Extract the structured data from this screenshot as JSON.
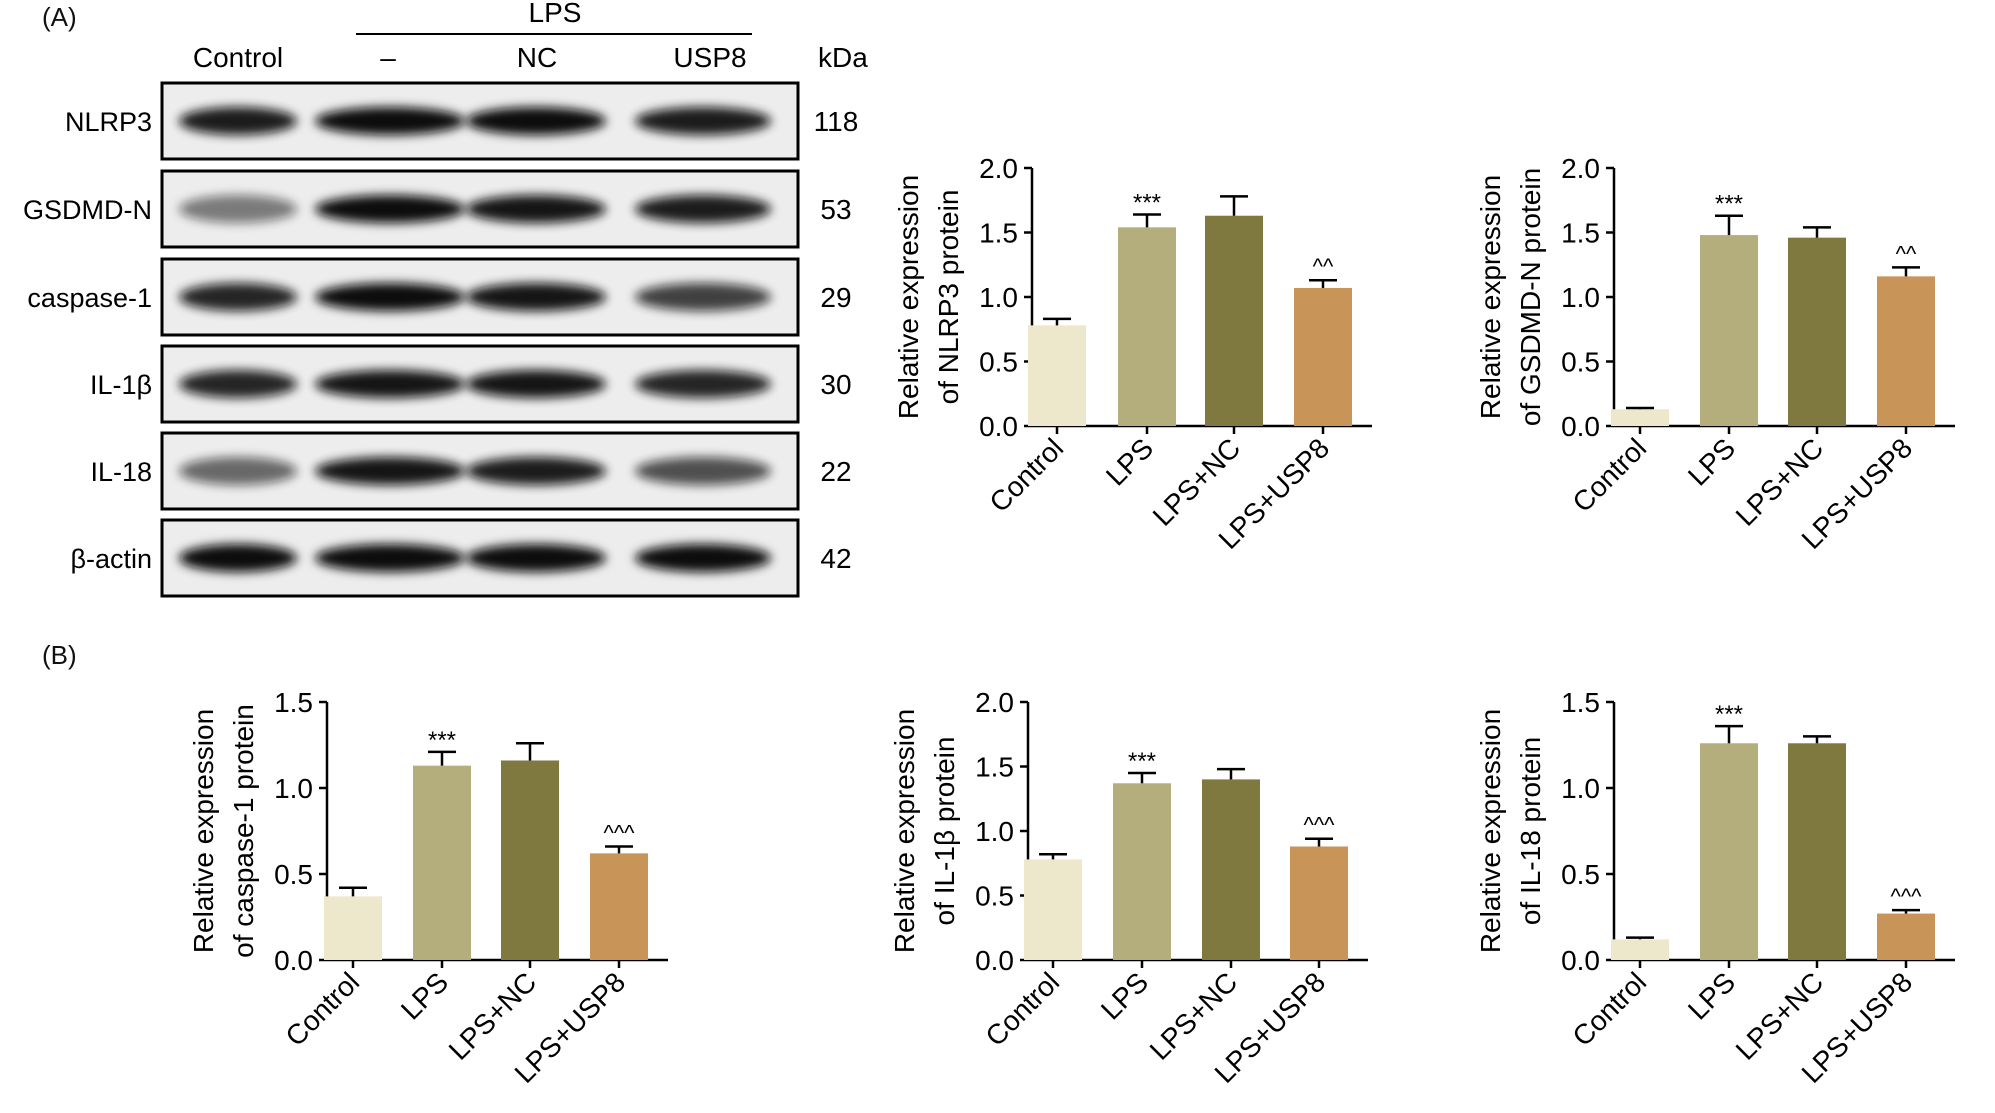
{
  "panels": {
    "a": "(A)",
    "b": "(B)"
  },
  "western_blot": {
    "header_group": "LPS",
    "lane_labels": [
      "Control",
      "–",
      "NC",
      "USP8"
    ],
    "unit_label": "kDa",
    "proteins": [
      {
        "name": "NLRP3",
        "kda": "118",
        "intensity": [
          0.9,
          1.0,
          1.0,
          0.9
        ]
      },
      {
        "name": "GSDMD-N",
        "kda": "53",
        "intensity": [
          0.35,
          1.0,
          0.95,
          0.9
        ]
      },
      {
        "name": "caspase-1",
        "kda": "29",
        "intensity": [
          0.85,
          1.0,
          0.95,
          0.7
        ]
      },
      {
        "name": "IL-1β",
        "kda": "30",
        "intensity": [
          0.85,
          0.95,
          0.95,
          0.85
        ]
      },
      {
        "name": "IL-18",
        "kda": "22",
        "intensity": [
          0.45,
          0.95,
          0.9,
          0.6
        ]
      },
      {
        "name": "β-actin",
        "kda": "42",
        "intensity": [
          1.0,
          1.0,
          1.0,
          1.0
        ]
      }
    ]
  },
  "chart_data": [
    {
      "type": "bar",
      "ylabel_lines": [
        "Relative expression",
        "of NLRP3 protein"
      ],
      "categories": [
        "Control",
        "LPS",
        "LPS+NC",
        "LPS+USP8"
      ],
      "values": [
        0.78,
        1.54,
        1.63,
        1.07
      ],
      "errors": [
        0.05,
        0.1,
        0.15,
        0.06
      ],
      "annotations": [
        "",
        "***",
        "",
        "^^"
      ],
      "ylim": [
        0,
        2.0
      ],
      "yticks": [
        "0.0",
        "0.5",
        "1.0",
        "1.5",
        "2.0"
      ],
      "colors": [
        "#ede7cb",
        "#b3ae7b",
        "#7f7940",
        "#c89457"
      ]
    },
    {
      "type": "bar",
      "ylabel_lines": [
        "Relative expression",
        "of GSDMD-N protein"
      ],
      "categories": [
        "Control",
        "LPS",
        "LPS+NC",
        "LPS+USP8"
      ],
      "values": [
        0.13,
        1.48,
        1.46,
        1.16
      ],
      "errors": [
        0.01,
        0.15,
        0.08,
        0.07
      ],
      "annotations": [
        "",
        "***",
        "",
        "^^"
      ],
      "ylim": [
        0,
        2.0
      ],
      "yticks": [
        "0.0",
        "0.5",
        "1.0",
        "1.5",
        "2.0"
      ],
      "colors": [
        "#ede7cb",
        "#b3ae7b",
        "#7f7940",
        "#c89457"
      ]
    },
    {
      "type": "bar",
      "ylabel_lines": [
        "Relative expression",
        "of caspase-1 protein"
      ],
      "categories": [
        "Control",
        "LPS",
        "LPS+NC",
        "LPS+USP8"
      ],
      "values": [
        0.37,
        1.13,
        1.16,
        0.62
      ],
      "errors": [
        0.05,
        0.08,
        0.1,
        0.04
      ],
      "annotations": [
        "",
        "***",
        "",
        "^^^"
      ],
      "ylim": [
        0,
        1.5
      ],
      "yticks": [
        "0.0",
        "0.5",
        "1.0",
        "1.5"
      ],
      "colors": [
        "#ede7cb",
        "#b3ae7b",
        "#7f7940",
        "#c89457"
      ]
    },
    {
      "type": "bar",
      "ylabel_lines": [
        "Relative expression",
        "of IL-1β protein"
      ],
      "categories": [
        "Control",
        "LPS",
        "LPS+NC",
        "LPS+USP8"
      ],
      "values": [
        0.78,
        1.37,
        1.4,
        0.88
      ],
      "errors": [
        0.04,
        0.08,
        0.08,
        0.06
      ],
      "annotations": [
        "",
        "***",
        "",
        "^^^"
      ],
      "ylim": [
        0,
        2.0
      ],
      "yticks": [
        "0.0",
        "0.5",
        "1.0",
        "1.5",
        "2.0"
      ],
      "colors": [
        "#ede7cb",
        "#b3ae7b",
        "#7f7940",
        "#c89457"
      ]
    },
    {
      "type": "bar",
      "ylabel_lines": [
        "Relative expression",
        "of IL-18 protein"
      ],
      "categories": [
        "Control",
        "LPS",
        "LPS+NC",
        "LPS+USP8"
      ],
      "values": [
        0.12,
        1.26,
        1.26,
        0.27
      ],
      "errors": [
        0.01,
        0.1,
        0.04,
        0.02
      ],
      "annotations": [
        "",
        "***",
        "",
        "^^^"
      ],
      "ylim": [
        0,
        1.5
      ],
      "yticks": [
        "0.0",
        "0.5",
        "1.0",
        "1.5"
      ],
      "colors": [
        "#ede7cb",
        "#b3ae7b",
        "#7f7940",
        "#c89457"
      ]
    }
  ]
}
